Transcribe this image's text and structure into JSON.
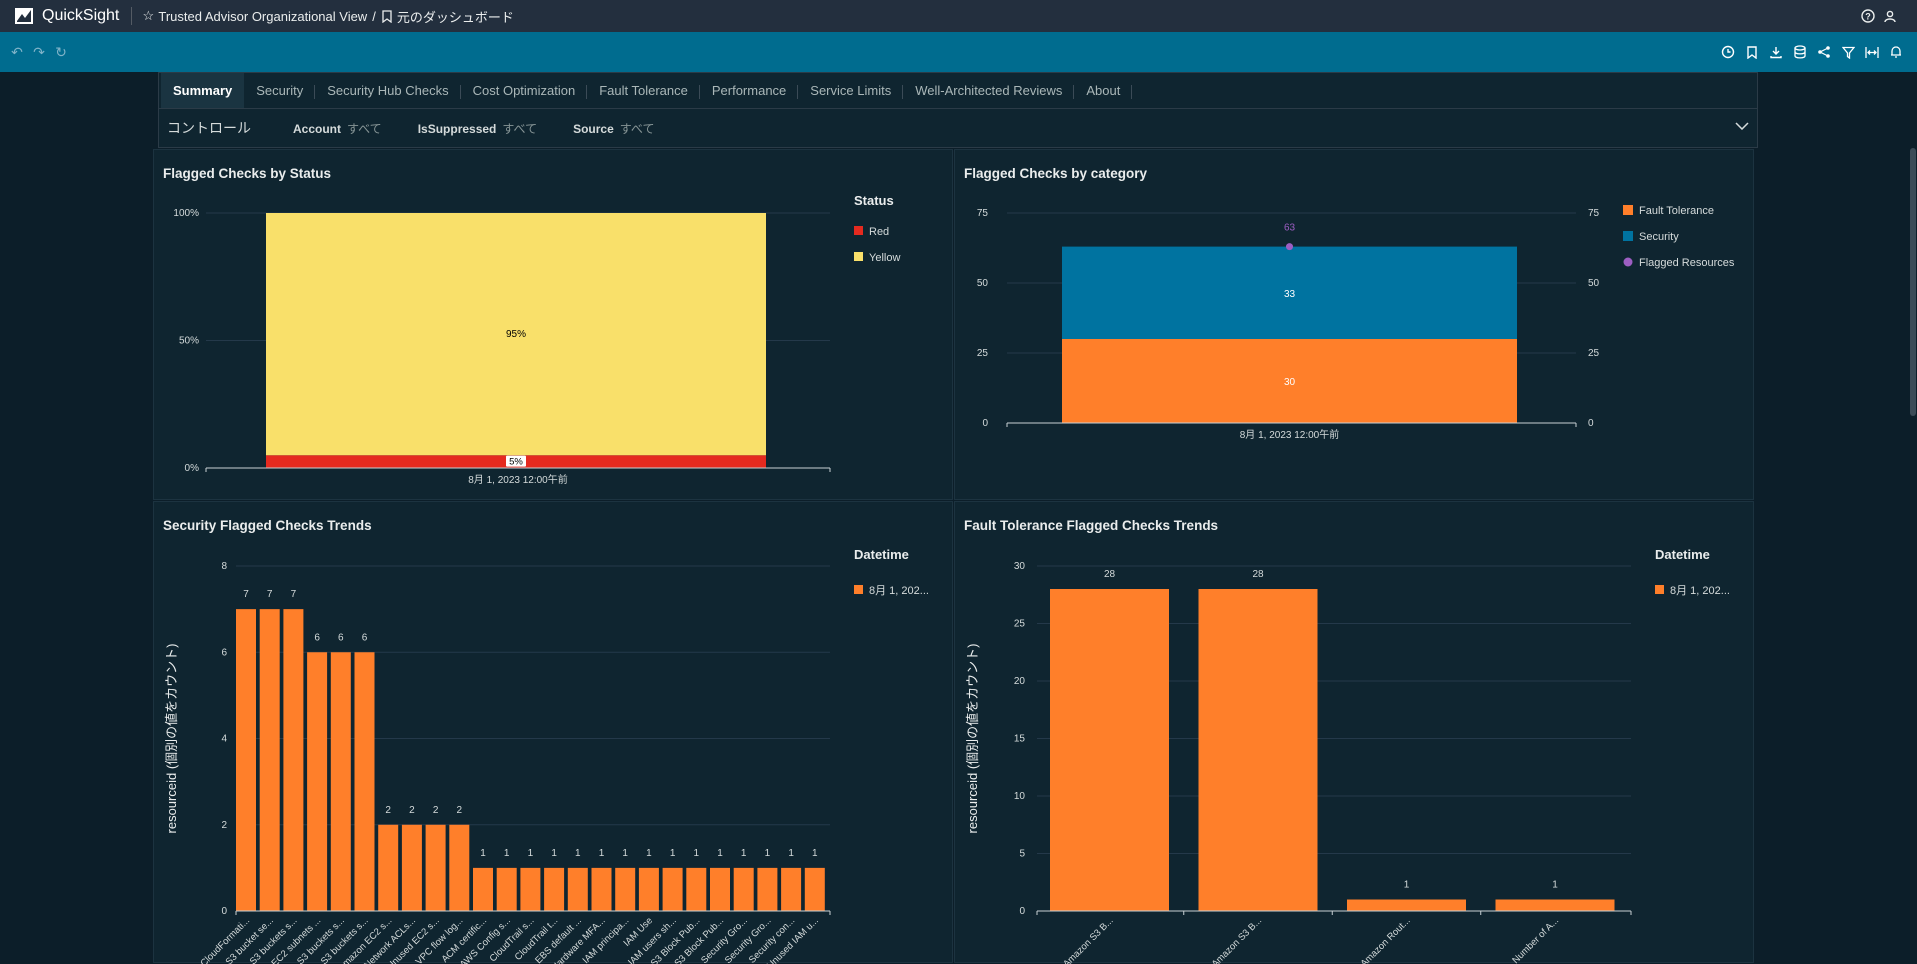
{
  "app": {
    "name": "QuickSight"
  },
  "breadcrumb": {
    "analysis": "Trusted Advisor Organizational View",
    "separator": "/",
    "dashboard": "元のダッシュボード"
  },
  "tabs": [
    "Summary",
    "Security",
    "Security Hub Checks",
    "Cost Optimization",
    "Fault Tolerance",
    "Performance",
    "Service Limits",
    "Well-Architected Reviews",
    "About"
  ],
  "active_tab": "Summary",
  "controls": {
    "title": "コントロール",
    "items": [
      {
        "label": "Account",
        "value": "すべて"
      },
      {
        "label": "IsSuppressed",
        "value": "すべて"
      },
      {
        "label": "Source",
        "value": "すべて"
      }
    ]
  },
  "colors": {
    "red": "#e52a1f",
    "yellow": "#f9e06a",
    "orange": "#ff7f2a",
    "blue": "#0073a0",
    "purple": "#9d5ec2"
  },
  "chart_data": [
    {
      "type": "bar",
      "stacked": "percent",
      "title": "Flagged Checks by Status",
      "categories": [
        "8月 1, 2023 12:00午前"
      ],
      "series": [
        {
          "name": "Red",
          "values": [
            5
          ],
          "label": "5%"
        },
        {
          "name": "Yellow",
          "values": [
            95
          ],
          "label": "95%"
        }
      ],
      "yticks": [
        "0%",
        "50%",
        "100%"
      ],
      "legend_title": "Status",
      "legend": "right"
    },
    {
      "type": "bar",
      "stacked": true,
      "title": "Flagged Checks by category",
      "categories": [
        "8月 1, 2023 12:00午前"
      ],
      "series": [
        {
          "name": "Fault Tolerance",
          "values": [
            30
          ]
        },
        {
          "name": "Security",
          "values": [
            33
          ]
        },
        {
          "name": "Flagged Resources",
          "values": [
            63
          ],
          "kind": "point"
        }
      ],
      "ylim": [
        0,
        75
      ],
      "yticks": [
        0,
        25,
        50,
        75
      ],
      "legend": "right"
    },
    {
      "type": "bar",
      "title": "Security Flagged Checks Trends",
      "ylabel": "resourceid (個別の値をカウント)",
      "legend_title": "Datetime",
      "series": [
        {
          "name": "8月 1, 202...",
          "values": [
            7,
            7,
            7,
            6,
            6,
            6,
            2,
            2,
            2,
            2,
            1,
            1,
            1,
            1,
            1,
            1,
            1,
            1,
            1,
            1,
            1,
            1,
            1,
            1,
            1
          ]
        }
      ],
      "categories": [
        "CloudFormati...",
        "S3 bucket se...",
        "S3 buckets s...",
        "EC2 subnets ...",
        "S3 buckets s...",
        "S3 buckets s...",
        "Amazon EC2 s...",
        "Network ACLs...",
        "Unused EC2 s...",
        "VPC flow log...",
        "ACM certific...",
        "AWS Config s...",
        "CloudTrail s...",
        "CloudTrail t...",
        "EBS default ...",
        "Hardware MFA...",
        "IAM principa...",
        "IAM Use",
        "IAM users sh...",
        "S3 Block Pub...",
        "S3 Block Pub...",
        "Security Gro...",
        "Security Gro...",
        "Security con...",
        "Unused IAM u..."
      ],
      "ylim": [
        0,
        8
      ],
      "yticks": [
        0,
        2,
        4,
        6,
        8
      ],
      "legend": "right"
    },
    {
      "type": "bar",
      "title": "Fault Tolerance Flagged Checks Trends",
      "ylabel": "resourceid (個別の値をカウント)",
      "legend_title": "Datetime",
      "series": [
        {
          "name": "8月 1, 202...",
          "values": [
            28,
            28,
            1,
            1
          ]
        }
      ],
      "categories": [
        "Amazon S3 B...",
        "Amazon S3 B...",
        "Amazon Rout...",
        "Number of A..."
      ],
      "ylim": [
        0,
        30
      ],
      "yticks": [
        0,
        5,
        10,
        15,
        20,
        25,
        30
      ],
      "legend": "right"
    }
  ]
}
